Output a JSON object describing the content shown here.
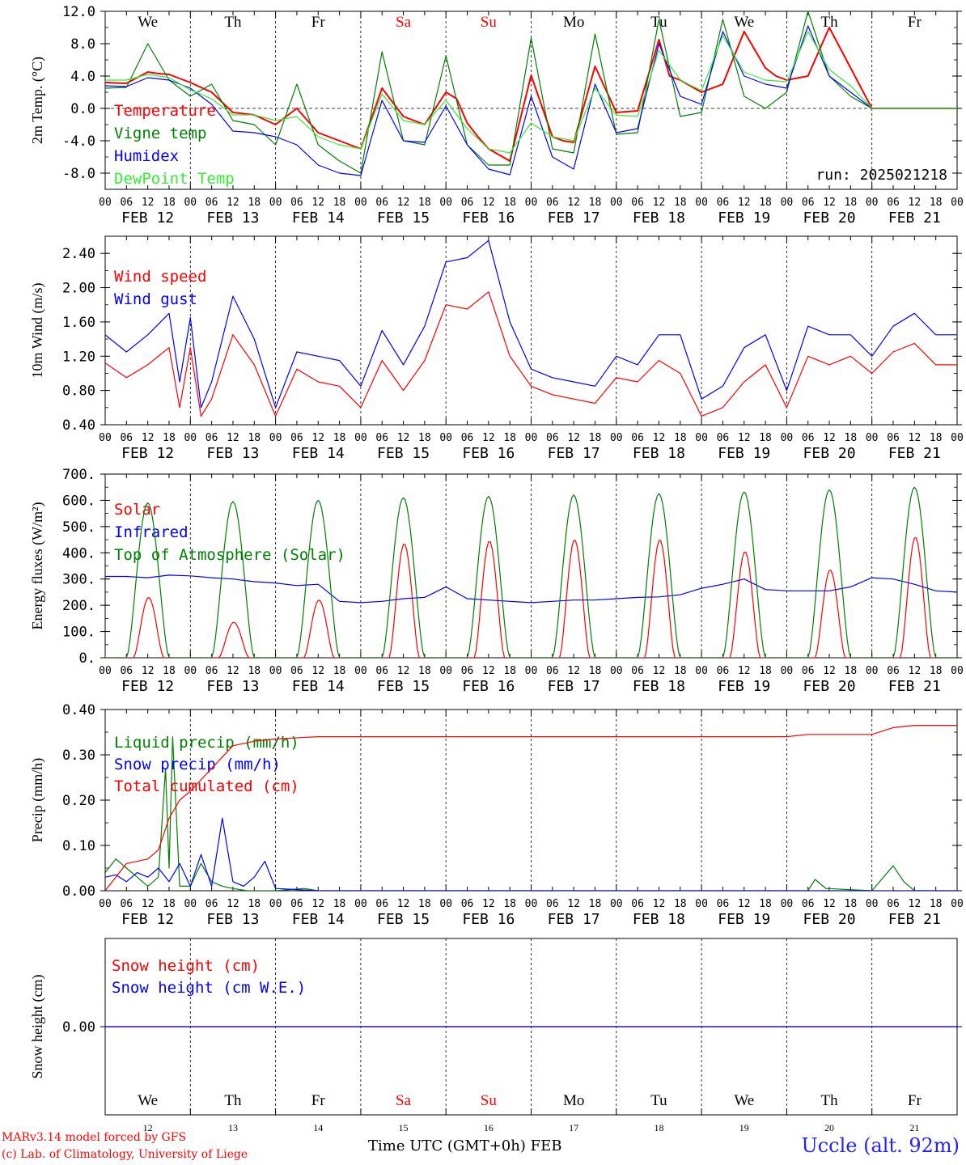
{
  "days": [
    {
      "date": "FEB 12",
      "weekday": "We",
      "weekend": false,
      "num": "12"
    },
    {
      "date": "FEB 13",
      "weekday": "Th",
      "weekend": false,
      "num": "13"
    },
    {
      "date": "FEB 14",
      "weekday": "Fr",
      "weekend": false,
      "num": "14"
    },
    {
      "date": "FEB 15",
      "weekday": "Sa",
      "weekend": true,
      "num": "15"
    },
    {
      "date": "FEB 16",
      "weekday": "Su",
      "weekend": true,
      "num": "16"
    },
    {
      "date": "FEB 17",
      "weekday": "Mo",
      "weekend": false,
      "num": "17"
    },
    {
      "date": "FEB 18",
      "weekday": "Tu",
      "weekend": false,
      "num": "18"
    },
    {
      "date": "FEB 19",
      "weekday": "We",
      "weekend": false,
      "num": "19"
    },
    {
      "date": "FEB 20",
      "weekday": "Th",
      "weekend": false,
      "num": "20"
    },
    {
      "date": "FEB 21",
      "weekday": "Fr",
      "weekend": false,
      "num": "21"
    }
  ],
  "hour_ticks": [
    "00",
    "06",
    "12",
    "18"
  ],
  "final_tick": "00",
  "colors": {
    "red": "#ff0000",
    "green": "#008000",
    "blue": "#0000ff",
    "lightgreen": "#33ee33",
    "axis": "#000000",
    "weekend": "#ff0000"
  },
  "footer": {
    "model": "MARv3.14 model forced by GFS",
    "credit": "(c) Lab. of Climatology, University of Liege",
    "xaxis": "Time UTC (GMT+0h) FEB",
    "station": "Uccle (alt. 92m)"
  },
  "chart_data": [
    {
      "id": "temperature",
      "type": "line",
      "ylabel": "2m Temp. (°C)",
      "ylim": [
        -10,
        12
      ],
      "yticks": [
        "12.0",
        "8.0",
        "4.0",
        "0.0",
        "-4.0",
        "-8.0"
      ],
      "ytick_values": [
        12,
        8,
        4,
        0,
        -4,
        -8
      ],
      "zero_line": true,
      "annotation": "run: 2025021218",
      "x_unit": "hours since FEB 12 00 UTC",
      "series": [
        {
          "name": "Temperature",
          "color": "red",
          "x": [
            0,
            6,
            12,
            15,
            18,
            24,
            30,
            36,
            42,
            48,
            54,
            60,
            66,
            72,
            78,
            84,
            90,
            96,
            99,
            102,
            105,
            108,
            114,
            120,
            126,
            129,
            132,
            138,
            144,
            150,
            156,
            159,
            162,
            168,
            174,
            180,
            186,
            189,
            192,
            198,
            204,
            210,
            216,
            219,
            222,
            228,
            234,
            240
          ],
          "y": [
            3.2,
            3.1,
            4.5,
            4.3,
            4.2,
            3.2,
            2.0,
            -0.5,
            -0.8,
            -2.0,
            0.0,
            -3.0,
            -4.0,
            -5.0,
            2.5,
            -1.0,
            -2.0,
            2.0,
            1.2,
            -1.8,
            -3.5,
            -5.0,
            -6.5,
            4.1,
            -3.5,
            -4.0,
            -4.2,
            5.2,
            -0.5,
            -0.3,
            8.5,
            4.0,
            3.5,
            2.0,
            3.0,
            9.5,
            5.0,
            4.0,
            3.5,
            4.0,
            10.0,
            5.0,
            0,
            0,
            0,
            0,
            0,
            0
          ]
        },
        {
          "name": "Vigne temp",
          "color": "green",
          "x": [
            0,
            6,
            12,
            18,
            24,
            30,
            36,
            42,
            48,
            54,
            60,
            66,
            72,
            78,
            84,
            90,
            96,
            102,
            108,
            114,
            120,
            126,
            132,
            138,
            144,
            150,
            156,
            162,
            168,
            174,
            180,
            186,
            192,
            198,
            204,
            210,
            216,
            222,
            228,
            234,
            240
          ],
          "y": [
            2.5,
            2.6,
            8.0,
            3.5,
            1.5,
            3.0,
            -1.5,
            -2.0,
            -4.5,
            3.0,
            -4.5,
            -6.5,
            -8.0,
            7.0,
            -4.0,
            -4.5,
            6.5,
            -4.5,
            -7.0,
            -7.0,
            8.7,
            -5.0,
            -5.5,
            9.2,
            -3.2,
            -3.0,
            11.0,
            -1.0,
            -0.5,
            11.0,
            1.5,
            0.0,
            2.0,
            12.0,
            4.0,
            1.5,
            0,
            0,
            0,
            0,
            0
          ]
        },
        {
          "name": "Humidex",
          "color": "blue",
          "x": [
            0,
            6,
            12,
            18,
            24,
            30,
            36,
            42,
            48,
            54,
            60,
            66,
            72,
            78,
            84,
            90,
            96,
            102,
            108,
            114,
            120,
            126,
            132,
            138,
            144,
            150,
            156,
            162,
            168,
            174,
            180,
            186,
            192,
            198,
            204,
            210,
            216,
            222,
            228,
            234,
            240
          ],
          "y": [
            2.8,
            2.7,
            3.8,
            3.5,
            2.5,
            0.5,
            -2.8,
            -3.0,
            -3.5,
            -4.5,
            -7.0,
            -8.0,
            -8.3,
            1.0,
            -4.0,
            -4.2,
            0.3,
            -4.5,
            -7.5,
            -8.2,
            1.5,
            -6.0,
            -7.5,
            3.0,
            -3.0,
            -2.5,
            8.0,
            1.5,
            0.5,
            9.5,
            4.0,
            3.0,
            2.5,
            10.2,
            4.0,
            2.0,
            0,
            0,
            0,
            0,
            0
          ]
        },
        {
          "name": "DewPoint Temp",
          "color": "lightgreen",
          "x": [
            0,
            6,
            12,
            18,
            24,
            30,
            36,
            42,
            48,
            54,
            60,
            66,
            72,
            78,
            84,
            90,
            96,
            102,
            108,
            114,
            120,
            126,
            132,
            138,
            144,
            150,
            156,
            162,
            168,
            174,
            180,
            186,
            192,
            198,
            204,
            210,
            216,
            222,
            228,
            234,
            240
          ],
          "y": [
            3.5,
            3.5,
            4.2,
            3.8,
            2.3,
            1.2,
            -0.8,
            -0.8,
            -1.5,
            -1.0,
            -3.5,
            -4.5,
            -5.0,
            1.8,
            -1.5,
            -2.0,
            1.0,
            -2.5,
            -5.0,
            -5.5,
            -1.8,
            -3.5,
            -4.0,
            2.5,
            -0.8,
            -1.0,
            7.2,
            3.5,
            2.2,
            9.0,
            4.5,
            3.5,
            3.3,
            9.5,
            4.8,
            2.8,
            0,
            0,
            0,
            0,
            0
          ]
        }
      ]
    },
    {
      "id": "wind",
      "type": "line",
      "ylabel": "10m Wind (m/s)",
      "ylim": [
        0.4,
        2.6
      ],
      "yticks": [
        "2.40",
        "2.00",
        "1.60",
        "1.20",
        "0.80",
        "0.40"
      ],
      "ytick_values": [
        2.4,
        2.0,
        1.6,
        1.2,
        0.8,
        0.4
      ],
      "x_unit": "hours since FEB 12 00 UTC",
      "series": [
        {
          "name": "Wind speed",
          "color": "red",
          "x": [
            0,
            6,
            12,
            18,
            21,
            24,
            27,
            30,
            36,
            42,
            48,
            54,
            60,
            66,
            72,
            78,
            84,
            90,
            96,
            102,
            108,
            114,
            120,
            126,
            132,
            138,
            144,
            150,
            156,
            162,
            168,
            174,
            180,
            186,
            192,
            198,
            204,
            210,
            216,
            222,
            228,
            234,
            240
          ],
          "y": [
            1.12,
            0.95,
            1.1,
            1.3,
            0.6,
            1.3,
            0.5,
            0.7,
            1.45,
            1.1,
            0.5,
            1.05,
            0.9,
            0.85,
            0.6,
            1.15,
            0.8,
            1.15,
            1.8,
            1.75,
            1.95,
            1.2,
            0.85,
            0.75,
            0.7,
            0.65,
            0.95,
            0.9,
            1.15,
            1.0,
            0.5,
            0.6,
            0.9,
            1.1,
            0.6,
            1.2,
            1.1,
            1.2,
            1.0,
            1.25,
            1.35,
            1.1,
            1.1
          ]
        },
        {
          "name": "Wind gust",
          "color": "blue",
          "x": [
            0,
            6,
            12,
            18,
            21,
            24,
            27,
            30,
            36,
            42,
            48,
            54,
            60,
            66,
            72,
            78,
            84,
            90,
            96,
            102,
            108,
            114,
            120,
            126,
            132,
            138,
            144,
            150,
            156,
            162,
            168,
            174,
            180,
            186,
            192,
            198,
            204,
            210,
            216,
            222,
            228,
            234,
            240
          ],
          "y": [
            1.45,
            1.25,
            1.45,
            1.7,
            0.9,
            1.65,
            0.6,
            0.9,
            1.9,
            1.4,
            0.6,
            1.25,
            1.2,
            1.15,
            0.85,
            1.5,
            1.1,
            1.55,
            2.3,
            2.35,
            2.55,
            1.6,
            1.05,
            0.95,
            0.9,
            0.85,
            1.2,
            1.1,
            1.45,
            1.45,
            0.7,
            0.85,
            1.3,
            1.45,
            0.8,
            1.55,
            1.45,
            1.45,
            1.2,
            1.55,
            1.7,
            1.45,
            1.45
          ]
        }
      ]
    },
    {
      "id": "energy",
      "type": "line",
      "ylabel": "Energy fluxes (W/m²)",
      "ylim": [
        0,
        700
      ],
      "yticks": [
        "700.",
        "600.",
        "500.",
        "400.",
        "300.",
        "200.",
        "100.",
        "0."
      ],
      "ytick_values": [
        700,
        600,
        500,
        400,
        300,
        200,
        100,
        0
      ],
      "x_unit": "hours since FEB 12 00 UTC",
      "series": [
        {
          "name": "Solar",
          "color": "red",
          "daily_peaks": [
            230,
            135,
            220,
            435,
            445,
            450,
            450,
            405,
            335,
            460
          ]
        },
        {
          "name": "Infrared",
          "color": "blue",
          "x": [
            0,
            6,
            12,
            18,
            24,
            30,
            36,
            42,
            48,
            54,
            60,
            66,
            72,
            78,
            84,
            90,
            96,
            102,
            108,
            114,
            120,
            126,
            132,
            138,
            144,
            150,
            156,
            162,
            168,
            174,
            180,
            186,
            192,
            198,
            204,
            210,
            216,
            222,
            228,
            234,
            240
          ],
          "y": [
            310,
            310,
            305,
            315,
            312,
            305,
            300,
            290,
            285,
            275,
            280,
            215,
            210,
            215,
            225,
            230,
            270,
            225,
            220,
            215,
            210,
            215,
            220,
            220,
            225,
            230,
            232,
            240,
            265,
            280,
            300,
            260,
            255,
            255,
            255,
            270,
            305,
            300,
            280,
            255,
            250
          ]
        },
        {
          "name": "Top of Atmosphere (Solar)",
          "color": "green",
          "daily_peaks": [
            590,
            595,
            600,
            610,
            615,
            620,
            625,
            632,
            640,
            650
          ]
        }
      ]
    },
    {
      "id": "precip",
      "type": "line",
      "ylabel": "Precip (mm/h)",
      "ylim": [
        0,
        0.4
      ],
      "yticks": [
        "0.40",
        "0.30",
        "0.20",
        "0.10",
        "0.00"
      ],
      "ytick_values": [
        0.4,
        0.3,
        0.2,
        0.1,
        0.0
      ],
      "x_unit": "hours since FEB 12 00 UTC",
      "series": [
        {
          "name": "Liquid precip (mm/h)",
          "color": "green",
          "x": [
            0,
            3,
            6,
            9,
            12,
            15,
            17,
            18,
            19,
            21,
            24,
            27,
            30,
            33,
            36,
            40,
            48,
            56,
            60,
            66,
            72,
            84,
            96,
            108,
            120,
            144,
            168,
            198,
            200,
            203,
            216,
            222,
            225,
            228,
            234,
            240
          ],
          "y": [
            0.04,
            0.07,
            0.05,
            0.03,
            0.01,
            0.03,
            0.27,
            0.05,
            0.34,
            0.01,
            0.01,
            0.06,
            0.02,
            0.01,
            0.005,
            0,
            0,
            0.005,
            0,
            0,
            0,
            0,
            0,
            0,
            0,
            0,
            0,
            0,
            0.025,
            0.005,
            0,
            0.055,
            0.02,
            0,
            0,
            0
          ]
        },
        {
          "name": "Snow precip (mm/h)",
          "color": "blue",
          "x": [
            0,
            3,
            6,
            9,
            12,
            15,
            18,
            21,
            24,
            27,
            30,
            33,
            36,
            39,
            42,
            45,
            48,
            60,
            72,
            96,
            120,
            144,
            168,
            192,
            216,
            240
          ],
          "y": [
            0.03,
            0.035,
            0.02,
            0.04,
            0.03,
            0.05,
            0.02,
            0.06,
            0.01,
            0.08,
            0.01,
            0.16,
            0.02,
            0.01,
            0.03,
            0.065,
            0.005,
            0,
            0,
            0,
            0,
            0,
            0,
            0,
            0,
            0
          ]
        },
        {
          "name": "Total cumulated (cm)",
          "color": "red",
          "x": [
            0,
            6,
            12,
            15,
            18,
            21,
            24,
            30,
            36,
            42,
            48,
            60,
            72,
            96,
            120,
            144,
            168,
            192,
            198,
            204,
            216,
            222,
            228,
            234,
            240
          ],
          "y": [
            0.0,
            0.06,
            0.07,
            0.09,
            0.16,
            0.2,
            0.22,
            0.27,
            0.32,
            0.33,
            0.335,
            0.34,
            0.34,
            0.34,
            0.34,
            0.34,
            0.34,
            0.34,
            0.345,
            0.345,
            0.345,
            0.36,
            0.365,
            0.365,
            0.365
          ]
        }
      ]
    },
    {
      "id": "snow",
      "type": "line",
      "ylabel": "Snow height (cm)",
      "yticks": [
        "0.00"
      ],
      "ytick_values": [
        0
      ],
      "x_unit": "hours since FEB 12 00 UTC",
      "series": [
        {
          "name": "Snow height (cm)",
          "color": "red",
          "x": [
            0,
            240
          ],
          "y": [
            0,
            0
          ]
        },
        {
          "name": "Snow height (cm W.E.)",
          "color": "blue",
          "x": [
            0,
            240
          ],
          "y": [
            0,
            0
          ]
        }
      ]
    }
  ]
}
